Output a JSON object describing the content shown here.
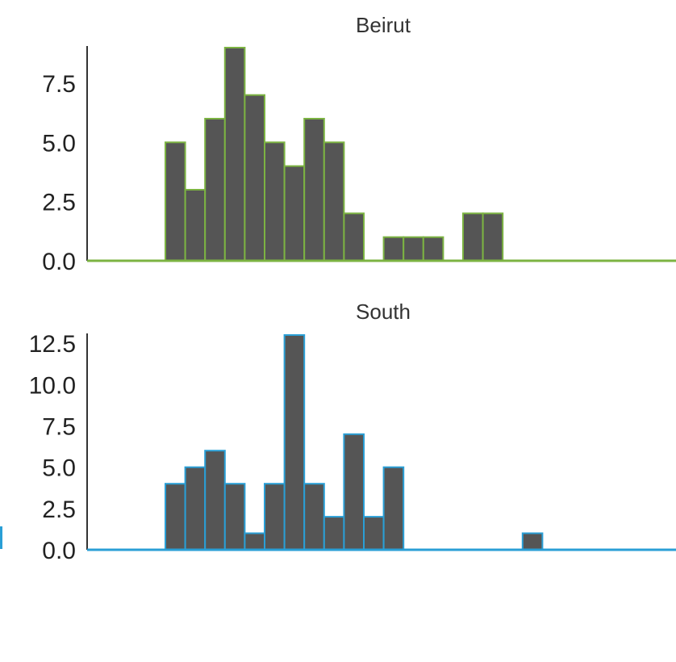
{
  "chart_data": [
    {
      "type": "bar",
      "title": "Beirut",
      "color": "#7cb342",
      "bar_fill": "#555555",
      "xlabel": "",
      "ylabel": "",
      "ylim": [
        0,
        9
      ],
      "yticks": [
        "0.0",
        "2.5",
        "5.0",
        "7.5"
      ],
      "bins": [
        {
          "bin": 4,
          "value": 5
        },
        {
          "bin": 5,
          "value": 3
        },
        {
          "bin": 6,
          "value": 6
        },
        {
          "bin": 7,
          "value": 9
        },
        {
          "bin": 8,
          "value": 7
        },
        {
          "bin": 9,
          "value": 5
        },
        {
          "bin": 10,
          "value": 4
        },
        {
          "bin": 11,
          "value": 6
        },
        {
          "bin": 12,
          "value": 5
        },
        {
          "bin": 13,
          "value": 2
        },
        {
          "bin": 15,
          "value": 1
        },
        {
          "bin": 16,
          "value": 1
        },
        {
          "bin": 17,
          "value": 1
        },
        {
          "bin": 19,
          "value": 2
        },
        {
          "bin": 20,
          "value": 2
        }
      ]
    },
    {
      "type": "bar",
      "title": "South",
      "color": "#2a9fd6",
      "bar_fill": "#555555",
      "xlabel": "",
      "ylabel": "",
      "ylim": [
        0,
        13
      ],
      "yticks": [
        "0.0",
        "2.5",
        "5.0",
        "7.5",
        "10.0",
        "12.5"
      ],
      "bins": [
        {
          "bin": 4,
          "value": 4
        },
        {
          "bin": 5,
          "value": 5
        },
        {
          "bin": 6,
          "value": 6
        },
        {
          "bin": 7,
          "value": 4
        },
        {
          "bin": 8,
          "value": 1
        },
        {
          "bin": 9,
          "value": 4
        },
        {
          "bin": 10,
          "value": 13
        },
        {
          "bin": 11,
          "value": 4
        },
        {
          "bin": 12,
          "value": 2
        },
        {
          "bin": 13,
          "value": 7
        },
        {
          "bin": 14,
          "value": 2
        },
        {
          "bin": 15,
          "value": 5
        },
        {
          "bin": 22,
          "value": 1
        }
      ]
    }
  ]
}
